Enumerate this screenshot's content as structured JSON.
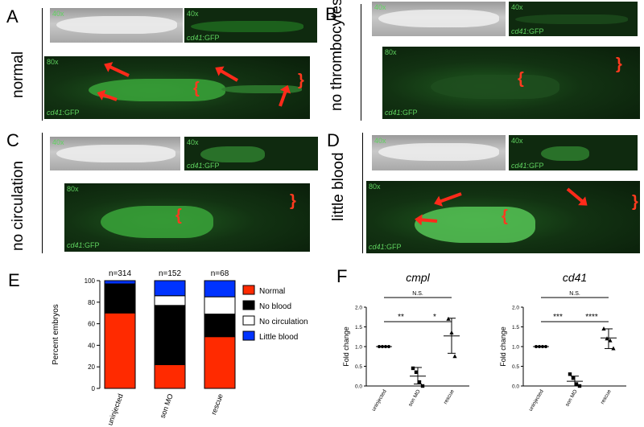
{
  "panels": {
    "A": {
      "letter": "A",
      "label": "normal",
      "tag40a": "40x",
      "tag40b": "40x",
      "tag80": "80x",
      "gfp": "cd41",
      "gfp_suffix": ":GFP"
    },
    "B": {
      "letter": "B",
      "label": "no thrombocytes",
      "tag40a": "40x",
      "tag40b": "40x",
      "tag80": "80x",
      "gfp": "cd41",
      "gfp_suffix": ":GFP"
    },
    "C": {
      "letter": "C",
      "label": "no circulation",
      "tag40a": "40x",
      "tag40b": "40x",
      "tag80": "80x",
      "gfp": "cd41",
      "gfp_suffix": ":GFP"
    },
    "D": {
      "letter": "D",
      "label": "little blood",
      "tag40a": "40x",
      "tag40b": "40x",
      "tag80": "80x",
      "gfp": "cd41",
      "gfp_suffix": ":GFP"
    },
    "E": {
      "letter": "E"
    },
    "F": {
      "letter": "F"
    }
  },
  "chart_data": [
    {
      "type": "bar",
      "stacked": true,
      "categories": [
        "uninjected",
        "son MO",
        "rescue"
      ],
      "n_labels": [
        "n=314",
        "n=152",
        "n=68"
      ],
      "ylabel": "Percent embryos",
      "ylim": [
        0,
        100
      ],
      "yticks": [
        "0",
        "20",
        "40",
        "60",
        "80",
        "100"
      ],
      "series": [
        {
          "name": "Normal",
          "color": "#ff2a00",
          "values": [
            70,
            22,
            48
          ]
        },
        {
          "name": "No blood",
          "color": "#000000",
          "values": [
            27,
            55,
            21
          ]
        },
        {
          "name": "No circulation",
          "color": "#ffffff",
          "values": [
            0,
            9,
            16
          ]
        },
        {
          "name": "Little blood",
          "color": "#0033ff",
          "values": [
            3,
            14,
            15
          ]
        }
      ],
      "legend_position": "right"
    },
    {
      "type": "scatter",
      "title": "cmpl",
      "ylabel": "Fold change",
      "categories": [
        "uninjected",
        "son MO",
        "rescue"
      ],
      "ylim": [
        0,
        2.0
      ],
      "yticks": [
        "0.0",
        "0.5",
        "1.0",
        "1.5",
        "2.0"
      ],
      "points": {
        "uninjected": [
          1.0,
          1.0,
          1.0,
          1.0
        ],
        "son MO": [
          0.45,
          0.35,
          0.1,
          0.0
        ],
        "rescue": [
          1.7,
          1.35,
          0.75
        ]
      },
      "mean": [
        1.0,
        0.25,
        1.27
      ],
      "err": [
        [
          1.0,
          1.0
        ],
        [
          0.05,
          0.47
        ],
        [
          0.83,
          1.72
        ]
      ],
      "significance": [
        {
          "from": 0,
          "to": 2,
          "label": "N.S."
        },
        {
          "from": 0,
          "to": 1,
          "label": "**"
        },
        {
          "from": 1,
          "to": 2,
          "label": "*"
        }
      ]
    },
    {
      "type": "scatter",
      "title": "cd41",
      "ylabel": "Fold change",
      "categories": [
        "uninjected",
        "son MO",
        "rescue"
      ],
      "ylim": [
        0,
        2.0
      ],
      "yticks": [
        "0.0",
        "0.5",
        "1.0",
        "1.5",
        "2.0"
      ],
      "points": {
        "uninjected": [
          1.0,
          1.0,
          1.0,
          1.0
        ],
        "son MO": [
          0.3,
          0.2,
          0.05,
          0.0
        ],
        "rescue": [
          1.45,
          1.2,
          1.15,
          0.95
        ]
      },
      "mean": [
        1.0,
        0.12,
        1.22
      ],
      "err": [
        [
          1.0,
          1.0
        ],
        [
          0.0,
          0.25
        ],
        [
          0.95,
          1.45
        ]
      ],
      "significance": [
        {
          "from": 0,
          "to": 2,
          "label": "N.S."
        },
        {
          "from": 0,
          "to": 1,
          "label": "***"
        },
        {
          "from": 1,
          "to": 2,
          "label": "****"
        }
      ]
    }
  ]
}
